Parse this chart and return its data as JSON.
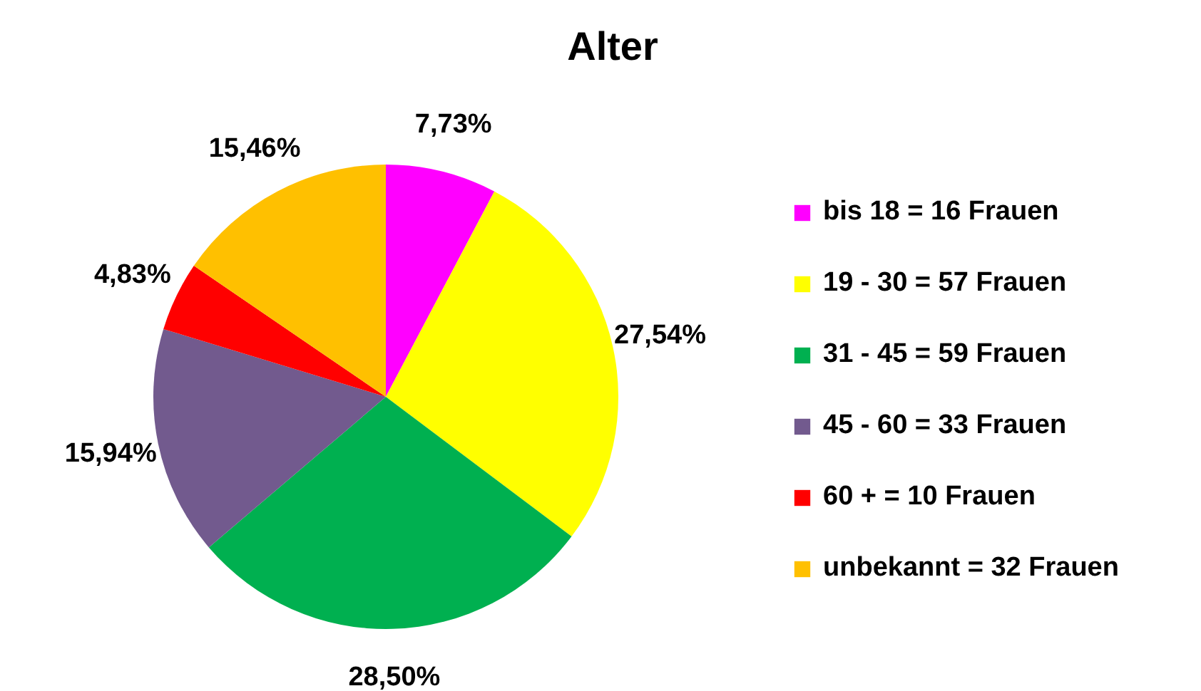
{
  "chart_data": {
    "type": "pie",
    "title": "Alter",
    "categories": [
      "bis 18 = 16 Frauen",
      "19 - 30 = 57 Frauen",
      "31 - 45 = 59 Frauen",
      "45 - 60 = 33 Frauen",
      "60 + = 10 Frauen",
      "unbekannt = 32 Frauen"
    ],
    "values": [
      7.73,
      27.54,
      28.5,
      15.94,
      4.83,
      15.46
    ],
    "value_labels": [
      "7,73%",
      "27,54%",
      "28,50%",
      "15,94%",
      "4,83%",
      "15,46%"
    ],
    "colors": [
      "#ff00ff",
      "#ffff00",
      "#00b050",
      "#725a8e",
      "#ff0000",
      "#ffc000"
    ],
    "legend": "right"
  }
}
